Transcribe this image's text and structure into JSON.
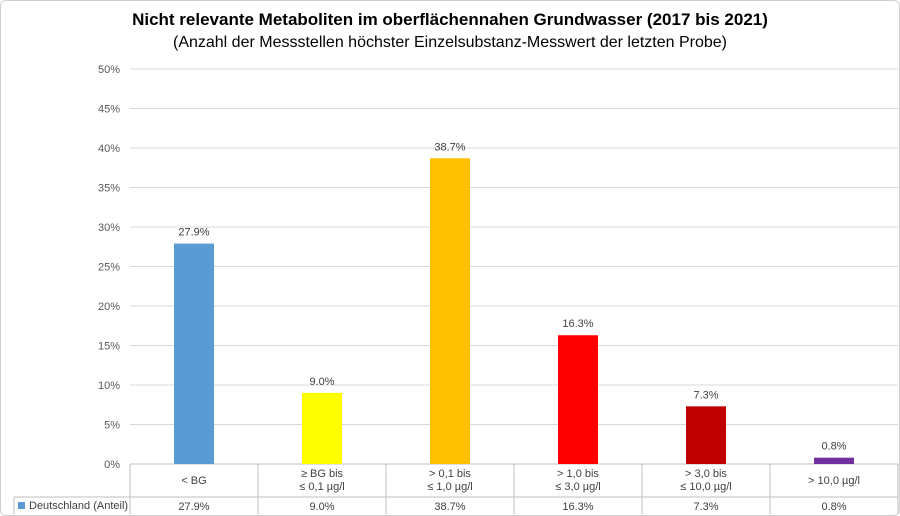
{
  "chart_data": {
    "type": "bar",
    "title": "Nicht relevante Metaboliten im oberflächennahen Grundwasser (2017 bis 2021)",
    "subtitle": "(Anzahl der Messstellen höchster Einzelsubstanz-Messwert der letzten Probe)",
    "categories": [
      [
        "< BG"
      ],
      [
        "≥ BG bis",
        "≤ 0,1 µg/l"
      ],
      [
        "> 0,1 bis",
        "≤ 1,0 µg/l"
      ],
      [
        "> 1,0 bis",
        "≤ 3,0 µg/l"
      ],
      [
        "> 3,0 bis",
        "≤ 10,0 µg/l"
      ],
      [
        "> 10,0 µg/l"
      ]
    ],
    "series": [
      {
        "name": "Deutschland (Anteil)",
        "values": [
          27.9,
          9.0,
          38.7,
          16.3,
          7.3,
          0.8
        ],
        "labels": [
          "27.9%",
          "9.0%",
          "38.7%",
          "16.3%",
          "7.3%",
          "0.8%"
        ],
        "legend_color": "#5b9bd5"
      }
    ],
    "bar_colors": [
      "#5b9bd5",
      "#ffff00",
      "#ffc000",
      "#ff0000",
      "#c00000",
      "#7030a0"
    ],
    "ylim": [
      0,
      50
    ],
    "yticks": [
      "0%",
      "5%",
      "10%",
      "15%",
      "20%",
      "25%",
      "30%",
      "35%",
      "40%",
      "45%",
      "50%"
    ],
    "grid": true,
    "legend": "data-table"
  }
}
